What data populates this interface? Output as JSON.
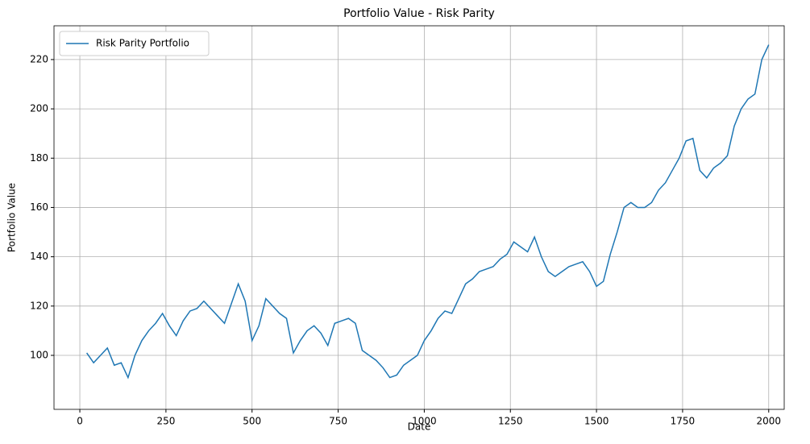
{
  "chart_data": {
    "type": "line",
    "title": "Portfolio Value - Risk Parity",
    "x_label": "Date",
    "y_label": "Portfolio Value",
    "x": [
      20,
      40,
      60,
      80,
      100,
      120,
      140,
      160,
      180,
      200,
      220,
      240,
      260,
      280,
      300,
      320,
      340,
      360,
      380,
      400,
      420,
      440,
      460,
      480,
      500,
      520,
      540,
      560,
      580,
      600,
      620,
      640,
      660,
      680,
      700,
      720,
      740,
      760,
      780,
      800,
      820,
      840,
      860,
      880,
      900,
      920,
      940,
      960,
      980,
      1000,
      1020,
      1040,
      1060,
      1080,
      1100,
      1120,
      1140,
      1160,
      1180,
      1200,
      1220,
      1240,
      1260,
      1280,
      1300,
      1320,
      1340,
      1360,
      1380,
      1400,
      1420,
      1440,
      1460,
      1480,
      1500,
      1520,
      1540,
      1560,
      1580,
      1600,
      1620,
      1640,
      1660,
      1680,
      1700,
      1720,
      1740,
      1760,
      1780,
      1800,
      1820,
      1840,
      1860,
      1880,
      1900,
      1920,
      1940,
      1960,
      1980,
      2000
    ],
    "series": [
      {
        "name": "Risk Parity Portfolio",
        "color": "#1f77b4",
        "values": [
          101,
          97,
          100,
          103,
          96,
          97,
          91,
          100,
          106,
          110,
          113,
          117,
          112,
          108,
          114,
          118,
          119,
          122,
          119,
          116,
          113,
          121,
          129,
          122,
          106,
          112,
          123,
          120,
          117,
          115,
          101,
          106,
          110,
          112,
          109,
          104,
          113,
          114,
          115,
          113,
          102,
          100,
          98,
          95,
          91,
          92,
          96,
          98,
          100,
          106,
          110,
          115,
          118,
          117,
          123,
          129,
          131,
          134,
          135,
          136,
          139,
          141,
          146,
          144,
          142,
          148,
          140,
          134,
          132,
          134,
          136,
          137,
          138,
          134,
          128,
          130,
          141,
          150,
          160,
          162,
          160,
          160,
          162,
          167,
          170,
          175,
          180,
          187,
          188,
          175,
          172,
          176,
          178,
          181,
          193,
          200,
          204,
          206,
          220,
          226
        ]
      }
    ],
    "xlim": [
      -75,
      2045
    ],
    "ylim": [
      78.1,
      233.7
    ],
    "xticks": [
      0,
      250,
      500,
      750,
      1000,
      1250,
      1500,
      1750,
      2000
    ],
    "yticks": [
      100,
      120,
      140,
      160,
      180,
      200,
      220
    ],
    "grid": true,
    "legend": "upper left"
  }
}
